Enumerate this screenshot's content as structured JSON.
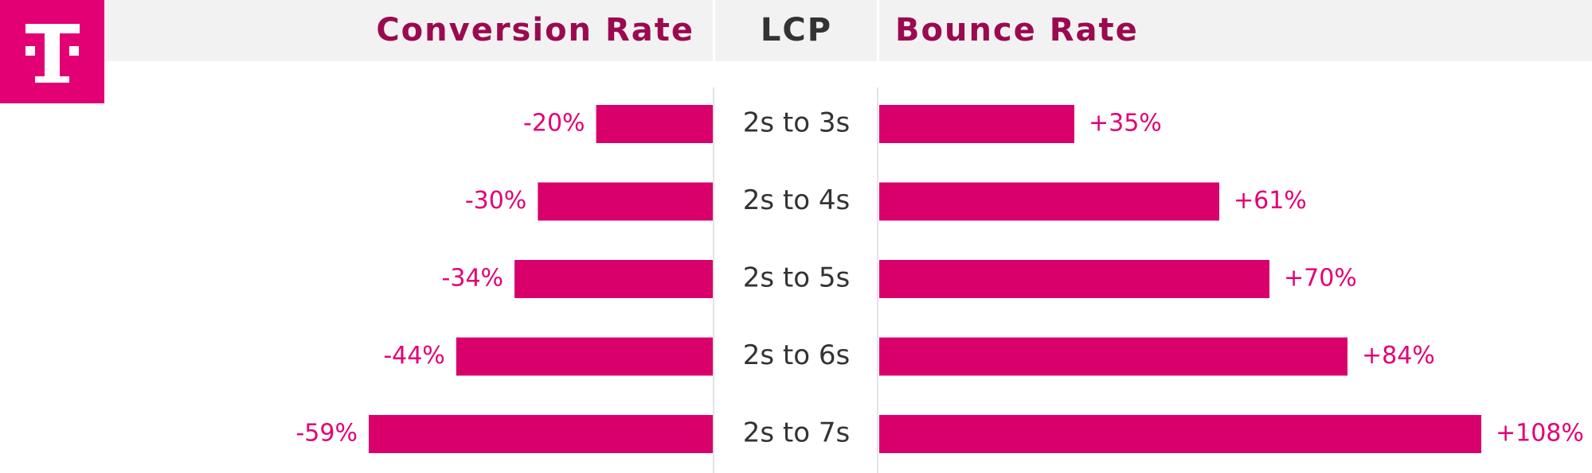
{
  "chart_data": {
    "type": "butterfly",
    "category_label": "LCP",
    "categories": [
      "2s to 3s",
      "2s to 4s",
      "2s to 5s",
      "2s to 6s",
      "2s to 7s"
    ],
    "series": [
      {
        "name": "Conversion Rate",
        "color": "#d9006c",
        "values": [
          -20,
          -30,
          -34,
          -44,
          -59
        ],
        "value_labels": [
          "-20%",
          "-30%",
          "-34%",
          "-44%",
          "-59%"
        ]
      },
      {
        "name": "Bounce Rate",
        "color": "#d9006c",
        "values": [
          35,
          61,
          70,
          84,
          108
        ],
        "value_labels": [
          "+35%",
          "+61%",
          "+70%",
          "+84%",
          "+108%"
        ]
      }
    ]
  }
}
